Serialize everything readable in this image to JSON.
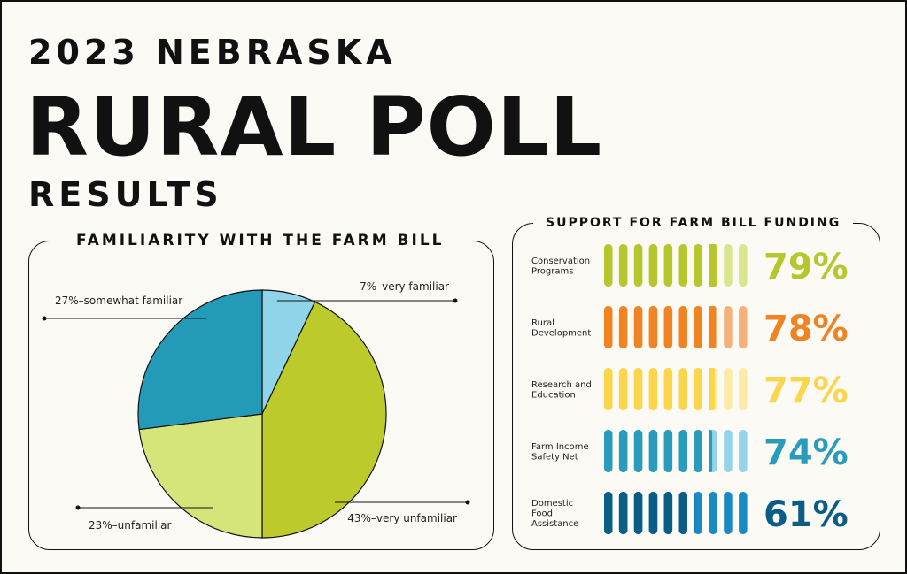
{
  "header": {
    "line1": "2023 NEBRASKA",
    "line2": "RURAL POLL",
    "line3": "RESULTS"
  },
  "colors": {
    "background": "#fbfaf5",
    "text": "#111111",
    "pie_very_familiar": "#8fd4e8",
    "pie_somewhat_familiar": "#239ab8",
    "pie_unfamiliar": "#d6e579",
    "pie_very_unfamiliar": "#bcca2b"
  },
  "chart_data": [
    {
      "type": "pie",
      "title": "FAMILIARITY WITH THE FARM BILL",
      "labels": [
        "7%–very familiar",
        "43%–very unfamiliar",
        "23%–unfamiliar",
        "27%–somewhat familiar"
      ],
      "values": [
        7,
        43,
        23,
        27
      ],
      "colors": [
        "#8fd4e8",
        "#bcca2b",
        "#d6e579",
        "#239ab8"
      ],
      "start": "top"
    },
    {
      "type": "bar",
      "title": "SUPPORT FOR FARM BILL FUNDING",
      "categories": [
        "Conservation Programs",
        "Rural Development",
        "Research and Education",
        "Farm Income Safety Net",
        "Domestic Food Assistance"
      ],
      "category_lines": [
        [
          "Conservation",
          "Programs"
        ],
        [
          "Rural",
          "Development"
        ],
        [
          "Research and",
          "Education"
        ],
        [
          "Farm Income",
          "Safety Net"
        ],
        [
          "Domestic",
          "Food",
          "Assistance"
        ]
      ],
      "values": [
        79,
        78,
        77,
        74,
        61
      ],
      "value_labels": [
        "79%",
        "78%",
        "77%",
        "74%",
        "61%"
      ],
      "units_per_row": 10,
      "colors": [
        {
          "full": "#b6c72d",
          "light": "#dbe58d",
          "text": "#b6c72d"
        },
        {
          "full": "#f08322",
          "light": "#f4b27a",
          "text": "#f08322"
        },
        {
          "full": "#fbd64c",
          "light": "#fbeba7",
          "text": "#fbd64c"
        },
        {
          "full": "#2a9cbb",
          "light": "#93d4e8",
          "text": "#2a9cbb"
        },
        {
          "full": "#0a5e86",
          "light": "#1a8ac2",
          "text": "#0a5e86"
        }
      ],
      "ylim": [
        0,
        100
      ]
    }
  ]
}
